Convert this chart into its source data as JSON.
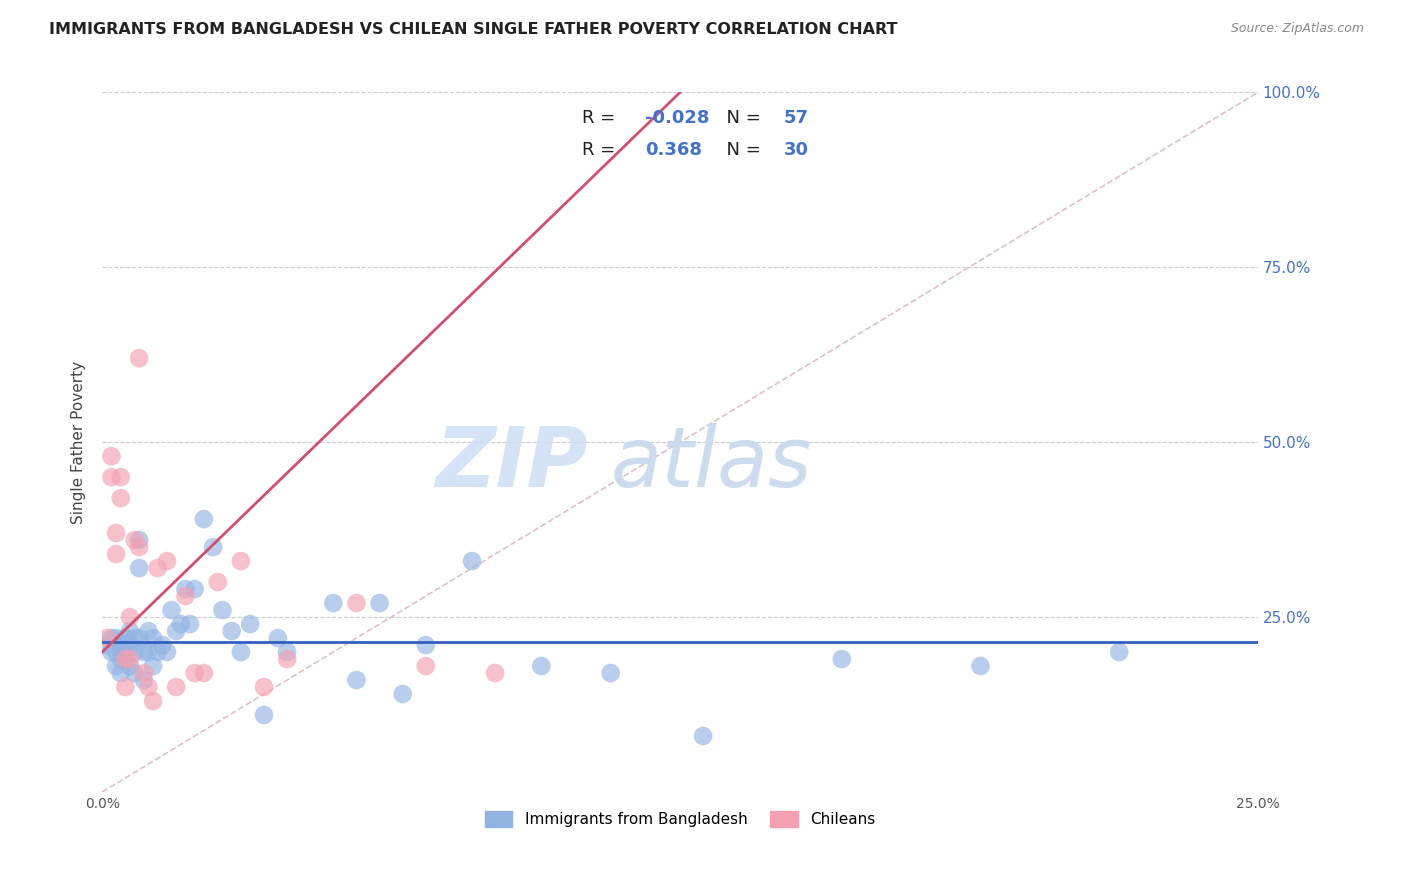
{
  "title": "IMMIGRANTS FROM BANGLADESH VS CHILEAN SINGLE FATHER POVERTY CORRELATION CHART",
  "source": "Source: ZipAtlas.com",
  "ylabel": "Single Father Poverty",
  "xlim": [
    0.0,
    0.25
  ],
  "ylim": [
    0.0,
    1.0
  ],
  "xticks": [
    0.0,
    0.05,
    0.1,
    0.15,
    0.2,
    0.25
  ],
  "xticklabels": [
    "0.0%",
    "",
    "",
    "",
    "",
    "25.0%"
  ],
  "yticks": [
    0.0,
    0.25,
    0.5,
    0.75,
    1.0
  ],
  "yticklabels_right": [
    "",
    "25.0%",
    "50.0%",
    "75.0%",
    "100.0%"
  ],
  "legend1_label": "Immigrants from Bangladesh",
  "legend2_label": "Chileans",
  "r1_text": "-0.028",
  "n1_text": "57",
  "r2_text": "0.368",
  "n2_text": "30",
  "color_blue": "#92b4e3",
  "color_pink": "#f4a0b0",
  "color_blue_line": "#3060c0",
  "color_pink_line": "#d05070",
  "color_diag_line": "#d8b0b8",
  "color_axis_text": "#4472c4",
  "color_legend_text_black": "#222222",
  "color_legend_text_blue": "#4472c4",
  "blue_points_x": [
    0.001,
    0.002,
    0.002,
    0.003,
    0.003,
    0.003,
    0.004,
    0.004,
    0.004,
    0.005,
    0.005,
    0.005,
    0.006,
    0.006,
    0.006,
    0.007,
    0.007,
    0.007,
    0.008,
    0.008,
    0.008,
    0.009,
    0.009,
    0.01,
    0.01,
    0.011,
    0.011,
    0.012,
    0.013,
    0.014,
    0.015,
    0.016,
    0.017,
    0.018,
    0.019,
    0.02,
    0.022,
    0.024,
    0.026,
    0.028,
    0.03,
    0.032,
    0.035,
    0.038,
    0.04,
    0.05,
    0.055,
    0.06,
    0.065,
    0.07,
    0.08,
    0.095,
    0.11,
    0.13,
    0.16,
    0.19,
    0.22
  ],
  "blue_points_y": [
    0.21,
    0.2,
    0.22,
    0.22,
    0.2,
    0.18,
    0.21,
    0.19,
    0.17,
    0.22,
    0.21,
    0.19,
    0.23,
    0.21,
    0.18,
    0.22,
    0.2,
    0.17,
    0.36,
    0.32,
    0.22,
    0.2,
    0.16,
    0.23,
    0.2,
    0.22,
    0.18,
    0.2,
    0.21,
    0.2,
    0.26,
    0.23,
    0.24,
    0.29,
    0.24,
    0.29,
    0.39,
    0.35,
    0.26,
    0.23,
    0.2,
    0.24,
    0.11,
    0.22,
    0.2,
    0.27,
    0.16,
    0.27,
    0.14,
    0.21,
    0.33,
    0.18,
    0.17,
    0.08,
    0.19,
    0.18,
    0.2
  ],
  "pink_points_x": [
    0.001,
    0.002,
    0.002,
    0.003,
    0.003,
    0.004,
    0.004,
    0.005,
    0.005,
    0.006,
    0.006,
    0.007,
    0.008,
    0.008,
    0.009,
    0.01,
    0.011,
    0.012,
    0.014,
    0.016,
    0.018,
    0.02,
    0.022,
    0.025,
    0.03,
    0.035,
    0.04,
    0.055,
    0.07,
    0.085
  ],
  "pink_points_y": [
    0.22,
    0.48,
    0.45,
    0.37,
    0.34,
    0.45,
    0.42,
    0.19,
    0.15,
    0.25,
    0.19,
    0.36,
    0.62,
    0.35,
    0.17,
    0.15,
    0.13,
    0.32,
    0.33,
    0.15,
    0.28,
    0.17,
    0.17,
    0.3,
    0.33,
    0.15,
    0.19,
    0.27,
    0.18,
    0.17
  ],
  "pink_trend_x0": 0.0,
  "pink_trend_y0": 0.2,
  "pink_trend_x1": 0.075,
  "pink_trend_y1": 0.68,
  "blue_trend_x0": 0.0,
  "blue_trend_y0": 0.215,
  "blue_trend_x1": 0.25,
  "blue_trend_y1": 0.215
}
